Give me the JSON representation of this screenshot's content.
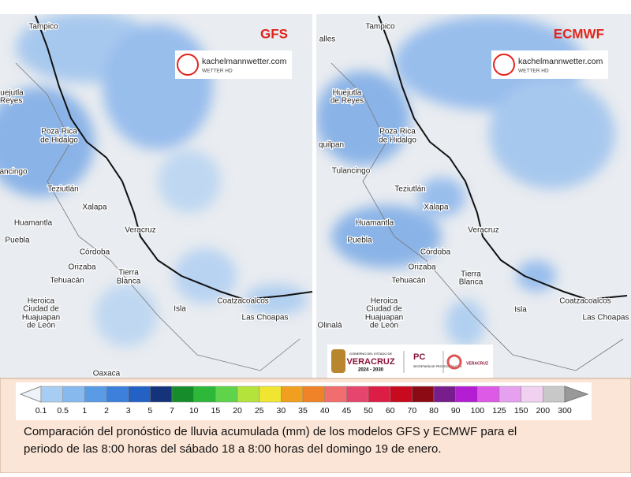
{
  "maps": [
    {
      "model": "GFS",
      "logo": {
        "site": "kachelmannwetter.com",
        "sub": "WETTER HD"
      },
      "labels": [
        "Tampico",
        "uejutla",
        "e Reyes",
        "Poza Rica",
        "de Hidalgo",
        "ancingo",
        "Teziutlán",
        "Xalapa",
        "Huamantla",
        "Veracruz",
        "Puebla",
        "Córdoba",
        "Orizaba",
        "Tierra",
        "Blanca",
        "Tehuacán",
        "Heroica",
        "Ciudad de",
        "Huajuapan",
        "de León",
        "Isla",
        "Coatzacoalcos",
        "Las Choapas",
        "Oaxaca"
      ]
    },
    {
      "model": "ECMWF",
      "logo": {
        "site": "kachelmannwetter.com",
        "sub": "WETTER HD"
      },
      "labels": [
        "alles",
        "Tampico",
        "Huejutla",
        "de Reyes",
        "Poza Rica",
        "de Hidalgo",
        "quilpan",
        "Tulancingo",
        "Teziutlán",
        "Xalapa",
        "Huamantla",
        "Veracruz",
        "Puebla",
        "Córdoba",
        "Orizaba",
        "Tierra",
        "Blanca",
        "Tehuacán",
        "Heroica",
        "Ciudad de",
        "Huajuapan",
        "de León",
        "Isla",
        "Coatzacoalcos",
        "Las Choapas",
        "Olinalá"
      ]
    }
  ],
  "gov_logo": {
    "top": "GOBIERNO DEL ESTADO DE",
    "state": "VERACRUZ",
    "period": "2024 - 2030",
    "pc": "PC",
    "pc_sub": "SECRETARÍA DE PROTECCIÓN CIVIL",
    "right": "VERACRUZ"
  },
  "colorbar": {
    "ticks": [
      "0.1",
      "0.5",
      "1",
      "2",
      "3",
      "5",
      "7",
      "10",
      "15",
      "20",
      "25",
      "30",
      "35",
      "40",
      "45",
      "50",
      "60",
      "70",
      "80",
      "90",
      "100",
      "125",
      "150",
      "200",
      "300"
    ],
    "colors": [
      "#a8cdf2",
      "#87b9ef",
      "#5a9be6",
      "#3c80dc",
      "#2461c4",
      "#14337a",
      "#178c2a",
      "#2db83a",
      "#5fd44a",
      "#b4e43c",
      "#f0e632",
      "#f0a01e",
      "#f08228",
      "#f06e6e",
      "#e6466e",
      "#dc1e46",
      "#c80a1e",
      "#8c0a14",
      "#781e8c",
      "#b41ed2",
      "#dc5ae6",
      "#e6a0f0",
      "#f0d2f0",
      "#c8c8c8"
    ]
  },
  "caption": [
    "Comparación del pronóstico de lluvia acumulada (mm) de los modelos GFS y ECMWF para el",
    "periodo de las 8:00 horas del sábado 18 a 8:00 horas del domingo 19 de enero."
  ]
}
